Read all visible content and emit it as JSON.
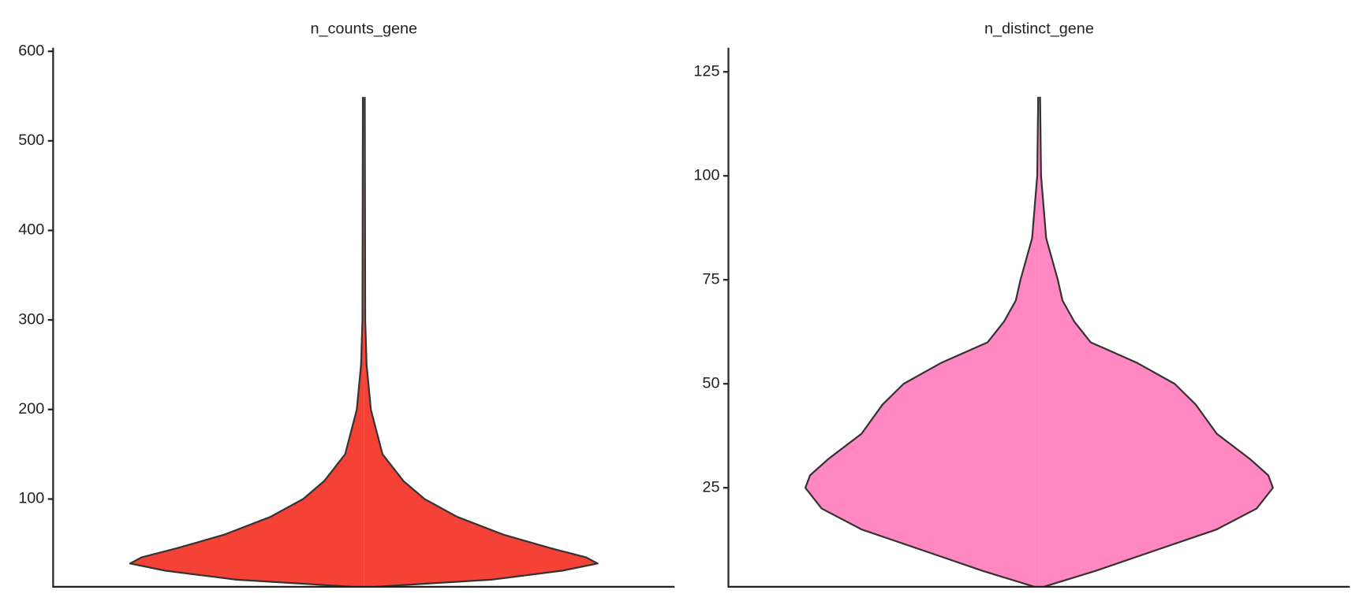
{
  "chart_data": [
    {
      "type": "violin",
      "title": "n_counts_gene",
      "color": "#f44336",
      "y": [
        2,
        10,
        20,
        28,
        35,
        45,
        60,
        80,
        100,
        120,
        150,
        200,
        250,
        300,
        549
      ],
      "density": [
        0.05,
        0.55,
        0.85,
        1.0,
        0.95,
        0.8,
        0.6,
        0.4,
        0.26,
        0.17,
        0.08,
        0.03,
        0.012,
        0.006,
        0.004
      ],
      "ylim": [
        2,
        604
      ],
      "yticks": [
        100,
        200,
        300,
        400,
        500,
        600
      ]
    },
    {
      "type": "violin",
      "title": "n_distinct_gene",
      "color": "#ff88c2",
      "y": [
        1.2,
        5,
        10,
        15,
        20,
        25,
        28,
        32,
        38,
        45,
        50,
        55,
        60,
        65,
        70,
        75,
        85,
        100,
        119
      ],
      "density": [
        0.02,
        0.24,
        0.5,
        0.76,
        0.93,
        1.0,
        0.98,
        0.9,
        0.76,
        0.67,
        0.58,
        0.42,
        0.22,
        0.15,
        0.1,
        0.08,
        0.03,
        0.008,
        0.004
      ],
      "ylim": [
        1.2,
        130.8
      ],
      "yticks": [
        25,
        50,
        75,
        100,
        125
      ]
    }
  ]
}
